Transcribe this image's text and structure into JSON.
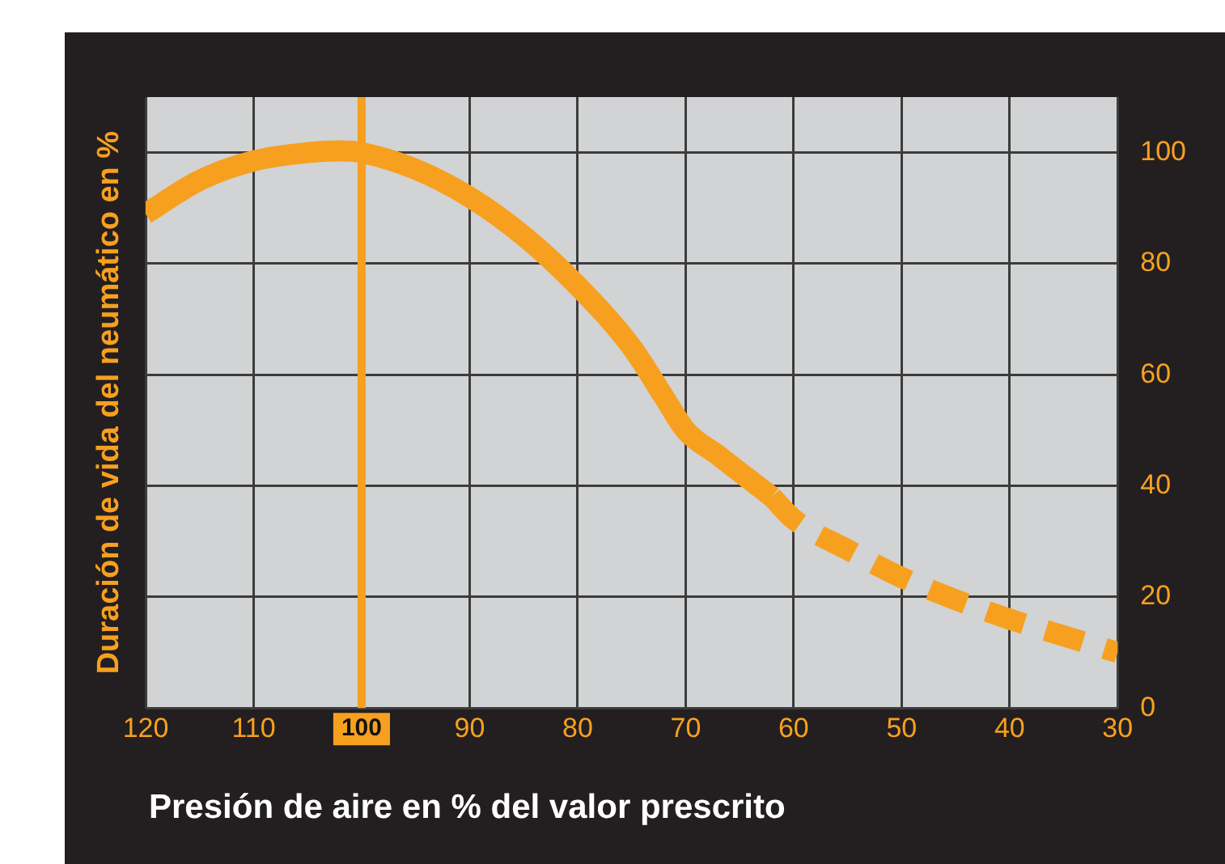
{
  "chart_data": {
    "type": "line",
    "xlabel": "Presión de aire en % del valor prescrito",
    "ylabel": "Duración de vida del neumático en %",
    "xlim": [
      120,
      30
    ],
    "xticks": [
      120,
      110,
      {
        "value": 100,
        "label": null
      },
      90,
      80,
      70,
      60,
      50,
      40,
      30
    ],
    "ylim": [
      0,
      110
    ],
    "yticks": [
      0,
      20,
      40,
      60,
      80,
      100
    ],
    "grid": true,
    "legend": false,
    "ref_lines": [
      {
        "axis": "x",
        "value": 100,
        "label": "100",
        "color": "#f7a01f"
      }
    ],
    "series": [
      {
        "color": "#f7a01f",
        "line_style": "solid",
        "x": [
          120,
          115,
          110,
          105,
          102,
          100,
          95,
          90,
          85,
          80,
          75,
          72,
          70,
          67,
          65,
          62
        ],
        "values": [
          89,
          95,
          98.5,
          100,
          100.3,
          100,
          97,
          92,
          85,
          76,
          65,
          56,
          50,
          45.5,
          42.5,
          38
        ]
      },
      {
        "color": "#f7a01f",
        "line_style": "dashed",
        "x": [
          62,
          60,
          55,
          50,
          45,
          40,
          35,
          30
        ],
        "values": [
          38,
          34,
          28.5,
          23.5,
          19.5,
          16,
          13,
          10
        ]
      }
    ]
  }
}
